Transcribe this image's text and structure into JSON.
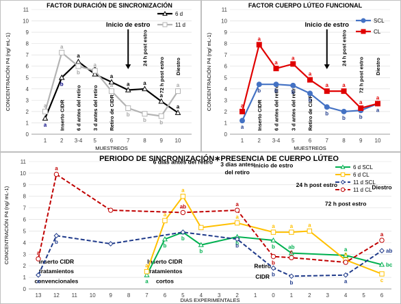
{
  "chart_data": [
    {
      "type": "line",
      "title": "FACTOR DURACIÓN DE SINCRONIZACIÓN",
      "ylabel": "CONCENTRACIÓN P4 (ng/ mL-1)",
      "xlabel": "MUESTREOS",
      "categories": [
        "1",
        "2",
        "3-4",
        "5",
        "6",
        "7",
        "8",
        "9",
        "10"
      ],
      "ylim": [
        0,
        11
      ],
      "yticks": [
        0,
        1,
        2,
        3,
        4,
        5,
        6,
        7,
        8,
        9,
        10,
        11
      ],
      "series": [
        {
          "name": "6 d",
          "color": "#000000",
          "marker": "triangle",
          "values": [
            1.4,
            5.0,
            6.4,
            5.3,
            4.6,
            3.9,
            4.0,
            2.9,
            1.9
          ],
          "labels": [
            {
              "text": "a",
              "color": "#000080",
              "pos": "below"
            },
            {
              "text": "b",
              "color": "#000080",
              "pos": "below"
            },
            {
              "text": "a",
              "color": "#000000",
              "pos": "above"
            },
            {
              "text": "a",
              "color": "#000000",
              "pos": "above"
            },
            {
              "text": "a",
              "color": "#000000",
              "pos": "above"
            },
            {
              "text": "a",
              "color": "#000000",
              "pos": "above"
            },
            {
              "text": "a",
              "color": "#000000",
              "pos": "above"
            },
            {
              "text": "a",
              "color": "#000000",
              "pos": "above"
            },
            {
              "text": "a",
              "color": "#000000",
              "pos": "above"
            }
          ]
        },
        {
          "name": "11 d",
          "color": "#b3b3b3",
          "marker": "square",
          "values": [
            2.0,
            7.2,
            6.0,
            5.6,
            3.8,
            2.3,
            1.8,
            1.6,
            3.8
          ],
          "labels": [
            {
              "text": "a",
              "color": "#a6a6a6",
              "pos": "above"
            },
            {
              "text": "a",
              "color": "#a6a6a6",
              "pos": "above"
            },
            {
              "text": "b",
              "color": "#a6a6a6",
              "pos": "below"
            },
            {
              "text": "a",
              "color": "#a6a6a6",
              "pos": "above"
            },
            {
              "text": "a",
              "color": "#a6a6a6",
              "pos": "above"
            },
            {
              "text": "b",
              "color": "#a6a6a6",
              "pos": "below"
            },
            {
              "text": "b",
              "color": "#a6a6a6",
              "pos": "below"
            },
            {
              "text": "b",
              "color": "#a6a6a6",
              "pos": "below"
            },
            {
              "text": "a",
              "color": "#a6a6a6",
              "pos": "above"
            }
          ]
        }
      ],
      "annotations": [
        {
          "text": "Inserto CIDR",
          "x": "2",
          "y": 0.3
        },
        {
          "text": "6 d antes del retiro",
          "x": "3-4",
          "y": 0.3
        },
        {
          "text": "3 d antes del retiro",
          "x": "5",
          "y": 0.3
        },
        {
          "text": "Retiro de CIDR",
          "x": "6",
          "y": 0.3
        },
        {
          "text": "Inicio de estro",
          "x": "7",
          "y": 9.5,
          "arrow_to": 5.8
        },
        {
          "text": "24 h post estro",
          "x": "8",
          "y": 6.0
        },
        {
          "text": "72 h post estro",
          "x": "9",
          "y": 3.6
        },
        {
          "text": "Diestro",
          "x": "10",
          "y": 5.2
        }
      ]
    },
    {
      "type": "line",
      "title": "FACTOR CUERPO LÚTEO FUNCIONAL",
      "ylabel": "CONCENTRACIÓN P4 (ng/ mL-1)",
      "xlabel": "MUESTREOS",
      "categories": [
        "1",
        "2",
        "3-4",
        "5",
        "6",
        "7",
        "8",
        "9",
        "10"
      ],
      "ylim": [
        0,
        11
      ],
      "yticks": [
        0,
        1,
        2,
        3,
        4,
        5,
        6,
        7,
        8,
        9,
        10,
        11
      ],
      "series": [
        {
          "name": "SCL",
          "color": "#4472c4",
          "marker": "circle",
          "values": [
            1.2,
            4.4,
            4.4,
            4.3,
            3.6,
            2.4,
            2.0,
            2.1,
            2.7
          ],
          "labels": [
            {
              "text": "a",
              "color": "#1f3a8a",
              "pos": "below"
            },
            {
              "text": "b",
              "color": "#1f3a8a",
              "pos": "below"
            },
            {
              "text": "b",
              "color": "#1f3a8a",
              "pos": "below"
            },
            {
              "text": "b",
              "color": "#1f3a8a",
              "pos": "below"
            },
            {
              "text": "b",
              "color": "#1f3a8a",
              "pos": "below"
            },
            {
              "text": "b",
              "color": "#1f3a8a",
              "pos": "below"
            },
            {
              "text": "b",
              "color": "#1f3a8a",
              "pos": "below"
            },
            {
              "text": "b",
              "color": "#1f3a8a",
              "pos": "below"
            },
            {
              "text": "a",
              "color": "#1f3a8a",
              "pos": "below"
            }
          ]
        },
        {
          "name": "CL",
          "color": "#e00000",
          "marker": "square",
          "values": [
            2.0,
            7.9,
            5.8,
            6.2,
            4.8,
            3.8,
            3.8,
            2.3,
            2.7
          ],
          "labels": [
            {
              "text": "a",
              "color": "#e00000",
              "pos": "above"
            },
            {
              "text": "a",
              "color": "#e00000",
              "pos": "above"
            },
            {
              "text": "a",
              "color": "#e00000",
              "pos": "above"
            },
            {
              "text": "a",
              "color": "#e00000",
              "pos": "above"
            },
            {
              "text": "a",
              "color": "#e00000",
              "pos": "above"
            },
            {
              "text": "a",
              "color": "#e00000",
              "pos": "above"
            },
            {
              "text": "a",
              "color": "#e00000",
              "pos": "above"
            },
            {
              "text": "a",
              "color": "#e00000",
              "pos": "above"
            },
            {
              "text": "a",
              "color": "#e00000",
              "pos": "above"
            }
          ]
        }
      ],
      "annotations": [
        {
          "text": "Inserto CIDR",
          "x": "2",
          "y": 0.3
        },
        {
          "text": "6 d antes del retiro",
          "x": "3-4",
          "y": 0.3
        },
        {
          "text": "3 d antes del retiro",
          "x": "5",
          "y": 0.3
        },
        {
          "text": "Retiro de CIDR",
          "x": "6",
          "y": 0.3
        },
        {
          "text": "Inicio de estro",
          "x": "7",
          "y": 9.5,
          "arrow_to": 5.8
        },
        {
          "text": "24 h post estro",
          "x": "8",
          "y": 6.0
        },
        {
          "text": "72 h post estro",
          "x": "9",
          "y": 3.6
        },
        {
          "text": "Diestro",
          "x": "10",
          "y": 5.2
        }
      ]
    },
    {
      "type": "line",
      "title": "PERIODO DE SINCRONIZACIÓN∗PRESENCIA DE CUERPO LÚTEO",
      "ylabel": "CONCENTRACIÓN P4 (ng/ mL-1)",
      "xlabel": "DIAS EXPERIMENTALES",
      "categories": [
        "13",
        "12",
        "11",
        "10",
        "9",
        "8",
        "7",
        "6",
        "5",
        "4",
        "3",
        "2",
        "1",
        "0",
        "1",
        "2",
        "3",
        "4",
        "5",
        "6"
      ],
      "ylim": [
        0,
        11
      ],
      "yticks": [
        0,
        1,
        2,
        3,
        4,
        5,
        6,
        7,
        8,
        9,
        10,
        11
      ],
      "series": [
        {
          "name": "6 d SCL",
          "color": "#00b050",
          "marker": "triangle",
          "dash": false,
          "points": [
            [
              6,
              1.2
            ],
            [
              7,
              4.3
            ],
            [
              8,
              4.9
            ],
            [
              9,
              3.8
            ],
            [
              11,
              4.5
            ],
            [
              13,
              4.2
            ],
            [
              14,
              3.1
            ],
            [
              17,
              2.9
            ],
            [
              19,
              2.1
            ]
          ],
          "labels": [
            {
              "text": "a",
              "color": "#00b050",
              "pos": "below"
            },
            {
              "text": "b",
              "color": "#00b050",
              "pos": "below"
            },
            {
              "text": "b",
              "color": "#00b050",
              "pos": "below"
            },
            {
              "text": "b",
              "color": "#00b050",
              "pos": "below"
            },
            {
              "text": "b",
              "color": "#00b050",
              "pos": "below"
            },
            {
              "text": "b",
              "color": "#00b050",
              "pos": "below"
            },
            {
              "text": "ab",
              "color": "#00b050",
              "pos": "above"
            },
            {
              "text": "a",
              "color": "#00b050",
              "pos": "above"
            },
            {
              "text": "bc",
              "color": "#00b050",
              "pos": "right"
            }
          ]
        },
        {
          "name": "6 d CL",
          "color": "#ffc000",
          "marker": "square",
          "dash": false,
          "points": [
            [
              6,
              1.5
            ],
            [
              7,
              5.9
            ],
            [
              8,
              8.0
            ],
            [
              9,
              5.3
            ],
            [
              11,
              5.7
            ],
            [
              13,
              4.9
            ],
            [
              14,
              4.9
            ],
            [
              15,
              5.0
            ],
            [
              17,
              2.5
            ],
            [
              19,
              1.3
            ]
          ],
          "labels": [
            {
              "text": "a",
              "color": "#ffc000",
              "pos": "above"
            },
            {
              "text": "a",
              "color": "#ffc000",
              "pos": "above"
            },
            {
              "text": "a",
              "color": "#ffc000",
              "pos": "above"
            },
            {
              "text": "",
              "color": "#ffc000",
              "pos": "above"
            },
            {
              "text": "a",
              "color": "#ffc000",
              "pos": "above"
            },
            {
              "text": "a",
              "color": "#ffc000",
              "pos": "above"
            },
            {
              "text": "a",
              "color": "#ffc000",
              "pos": "above"
            },
            {
              "text": "a",
              "color": "#ffc000",
              "pos": "above"
            },
            {
              "text": "a",
              "color": "#ffc000",
              "pos": "above"
            },
            {
              "text": "c",
              "color": "#ffc000",
              "pos": "below"
            }
          ]
        },
        {
          "name": "11 d SCL",
          "color": "#1f3a8a",
          "marker": "diamond",
          "dash": true,
          "points": [
            [
              0,
              1.2
            ],
            [
              1,
              4.6
            ],
            [
              4,
              3.9
            ],
            [
              8,
              4.9
            ],
            [
              11,
              4.3
            ],
            [
              13,
              1.8
            ],
            [
              14,
              1.1
            ],
            [
              17,
              1.2
            ],
            [
              19,
              3.3
            ]
          ],
          "labels": [
            {
              "text": "a",
              "color": "#1f3a8a",
              "pos": "below"
            },
            {
              "text": "b",
              "color": "#1f3a8a",
              "pos": "below"
            },
            {
              "text": "",
              "color": "#1f3a8a",
              "pos": "below"
            },
            {
              "text": "",
              "color": "#1f3a8a",
              "pos": "below"
            },
            {
              "text": "b",
              "color": "#1f3a8a",
              "pos": "below"
            },
            {
              "text": "b",
              "color": "#1f3a8a",
              "pos": "below"
            },
            {
              "text": "b",
              "color": "#1f3a8a",
              "pos": "below"
            },
            {
              "text": "a",
              "color": "#1f3a8a",
              "pos": "below"
            },
            {
              "text": "ab",
              "color": "#1f3a8a",
              "pos": "right"
            }
          ]
        },
        {
          "name": "11 d CL",
          "color": "#c00000",
          "marker": "circle",
          "dash": true,
          "points": [
            [
              0,
              2.6
            ],
            [
              1,
              9.9
            ],
            [
              4,
              6.8
            ],
            [
              8,
              6.6
            ],
            [
              11,
              6.8
            ],
            [
              13,
              2.8
            ],
            [
              14,
              2.7
            ],
            [
              17,
              2.3
            ],
            [
              19,
              4.2
            ]
          ],
          "labels": [
            {
              "text": "a",
              "color": "#c00000",
              "pos": "above"
            },
            {
              "text": "a",
              "color": "#c00000",
              "pos": "above"
            },
            {
              "text": "",
              "color": "#c00000",
              "pos": "above"
            },
            {
              "text": "ab",
              "color": "#c00000",
              "pos": "above"
            },
            {
              "text": "a",
              "color": "#c00000",
              "pos": "above"
            },
            {
              "text": "b",
              "color": "#c00000",
              "pos": "below"
            },
            {
              "text": "c",
              "color": "#c00000",
              "pos": "above"
            },
            {
              "text": "",
              "color": "#c00000",
              "pos": "above"
            },
            {
              "text": "a",
              "color": "#c00000",
              "pos": "above"
            }
          ]
        }
      ],
      "annotations": [
        {
          "text": "Inserto CIDR",
          "x": 1,
          "y": 2.2
        },
        {
          "text": "tratamientos",
          "x": 1,
          "y": 1.35
        },
        {
          "text": "convencionales",
          "x": 1,
          "y": 0.5
        },
        {
          "text": "Inserto CIDR",
          "x": 7,
          "y": 2.2
        },
        {
          "text": "tratamientos",
          "x": 7,
          "y": 1.35
        },
        {
          "text": "cortos",
          "x": 7,
          "y": 0.5
        },
        {
          "text": "6 dias antes del retiro",
          "x": 8,
          "y": 10.8
        },
        {
          "text": "3 dias antes",
          "x": 11,
          "y": 10.6
        },
        {
          "text": "del retiro",
          "x": 11,
          "y": 9.9
        },
        {
          "text": "Inicio de estro",
          "x": 13,
          "y": 10.5
        },
        {
          "text": "24 h post estro",
          "x": 15.4,
          "y": 8.8
        },
        {
          "text": "72 h post estro",
          "x": 17,
          "y": 7.2
        },
        {
          "text": "Diestro",
          "x": 19,
          "y": 8.6
        },
        {
          "text": "Retiro",
          "x": 12.4,
          "y": 1.8
        },
        {
          "text": "CIDR",
          "x": 12.4,
          "y": 0.9
        }
      ]
    }
  ]
}
